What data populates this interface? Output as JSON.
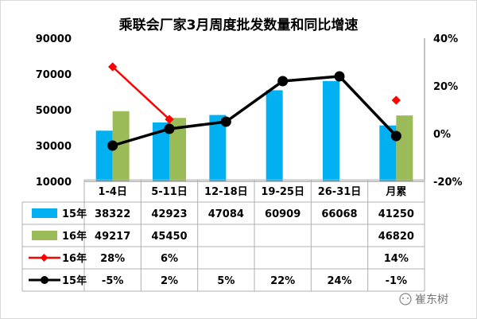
{
  "chart_data": {
    "type": "bar",
    "title": "乘联会厂家3月周度批发数量和同比增速",
    "categories": [
      "1-4日",
      "5-11日",
      "12-18日",
      "19-25日",
      "26-31日",
      "月累"
    ],
    "ylim": [
      10000,
      90000
    ],
    "y_ticks": [
      "90000",
      "70000",
      "50000",
      "30000",
      "10000"
    ],
    "y2lim": [
      -20,
      40
    ],
    "y2_ticks": [
      "40%",
      "20%",
      "0%",
      "-20%"
    ],
    "grid": false,
    "legend": "data table",
    "series": [
      {
        "name": "15年",
        "kind": "bar",
        "color": "#00B0F0",
        "values": [
          38322,
          42923,
          47084,
          60909,
          66068,
          41250
        ],
        "labels": [
          "38322",
          "42923",
          "47084",
          "60909",
          "66068",
          "41250"
        ]
      },
      {
        "name": "16年",
        "kind": "bar",
        "color": "#9BBB59",
        "values": [
          49217,
          45450,
          null,
          null,
          null,
          46820
        ],
        "labels": [
          "49217",
          "45450",
          "",
          "",
          "",
          "46820"
        ]
      },
      {
        "name": "16年",
        "kind": "line",
        "color": "#FF0000",
        "values": [
          28,
          6,
          null,
          null,
          null,
          14
        ],
        "labels": [
          "28%",
          "6%",
          "",
          "",
          "",
          "14%"
        ]
      },
      {
        "name": "15年",
        "kind": "line",
        "color": "#000000",
        "values": [
          -5,
          2,
          5,
          22,
          24,
          -1
        ],
        "labels": [
          "-5%",
          "2%",
          "5%",
          "22%",
          "24%",
          "-1%"
        ]
      }
    ]
  },
  "watermark": "崔东树"
}
